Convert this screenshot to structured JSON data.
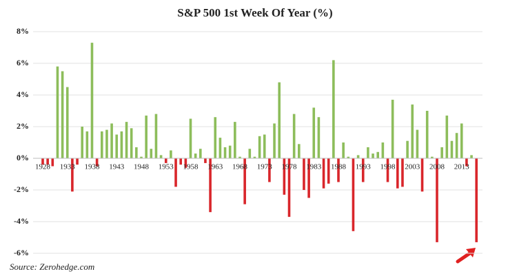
{
  "chart_data": {
    "type": "bar",
    "title": "S&P 500 1st Week Of Year (%)",
    "categories": [
      1928,
      null,
      null,
      null,
      null,
      1933,
      null,
      null,
      null,
      null,
      1938,
      null,
      null,
      null,
      null,
      1943,
      null,
      null,
      null,
      null,
      1948,
      null,
      null,
      null,
      null,
      1953,
      null,
      null,
      null,
      null,
      1958,
      null,
      null,
      null,
      null,
      1963,
      null,
      null,
      null,
      null,
      1968,
      null,
      null,
      null,
      null,
      1973,
      null,
      null,
      null,
      null,
      1978,
      null,
      null,
      null,
      null,
      1983,
      null,
      null,
      null,
      null,
      1988,
      null,
      null,
      null,
      null,
      1993,
      null,
      null,
      null,
      null,
      1998,
      null,
      null,
      null,
      null,
      2003,
      null,
      null,
      null,
      null,
      2008,
      null,
      null,
      null,
      null,
      2013,
      null,
      null,
      null
    ],
    "values": [
      -0.4,
      -0.4,
      -0.5,
      5.8,
      5.5,
      4.5,
      -2.1,
      -0.4,
      2.0,
      1.7,
      7.3,
      -0.5,
      1.7,
      1.8,
      2.2,
      1.5,
      1.7,
      2.3,
      1.9,
      0.7,
      0.1,
      2.7,
      0.6,
      2.8,
      0.2,
      -0.3,
      0.5,
      -1.8,
      -0.4,
      -0.6,
      2.5,
      0.3,
      0.6,
      -0.3,
      -3.4,
      2.6,
      1.3,
      0.7,
      0.8,
      2.3,
      0.1,
      -2.9,
      0.6,
      0.1,
      1.4,
      1.5,
      -1.5,
      2.2,
      4.8,
      -2.3,
      -3.7,
      2.8,
      0.9,
      -2.0,
      -2.5,
      3.2,
      2.6,
      -1.9,
      -1.6,
      6.2,
      -1.5,
      1.0,
      0.1,
      -4.6,
      0.2,
      -1.5,
      0.7,
      0.3,
      0.4,
      1.0,
      -1.5,
      3.7,
      -1.9,
      -1.8,
      1.1,
      3.4,
      1.8,
      -2.1,
      3.0,
      0.1,
      -5.3,
      0.7,
      2.7,
      1.1,
      1.6,
      2.2,
      -0.5,
      0.2,
      -5.3
    ],
    "positive_color": "#8dbd5b",
    "negative_color": "#d9262b",
    "ylim": [
      -6,
      8
    ],
    "yticks": [
      {
        "value": -6,
        "label": "-6%"
      },
      {
        "value": -4,
        "label": "-4%"
      },
      {
        "value": -2,
        "label": "-2%"
      },
      {
        "value": 0,
        "label": "0%"
      },
      {
        "value": 2,
        "label": "2%"
      },
      {
        "value": 4,
        "label": "4%"
      },
      {
        "value": 6,
        "label": "6%"
      },
      {
        "value": 8,
        "label": "8%"
      }
    ],
    "grid": true,
    "source": "Source: Zerohedge.com"
  }
}
